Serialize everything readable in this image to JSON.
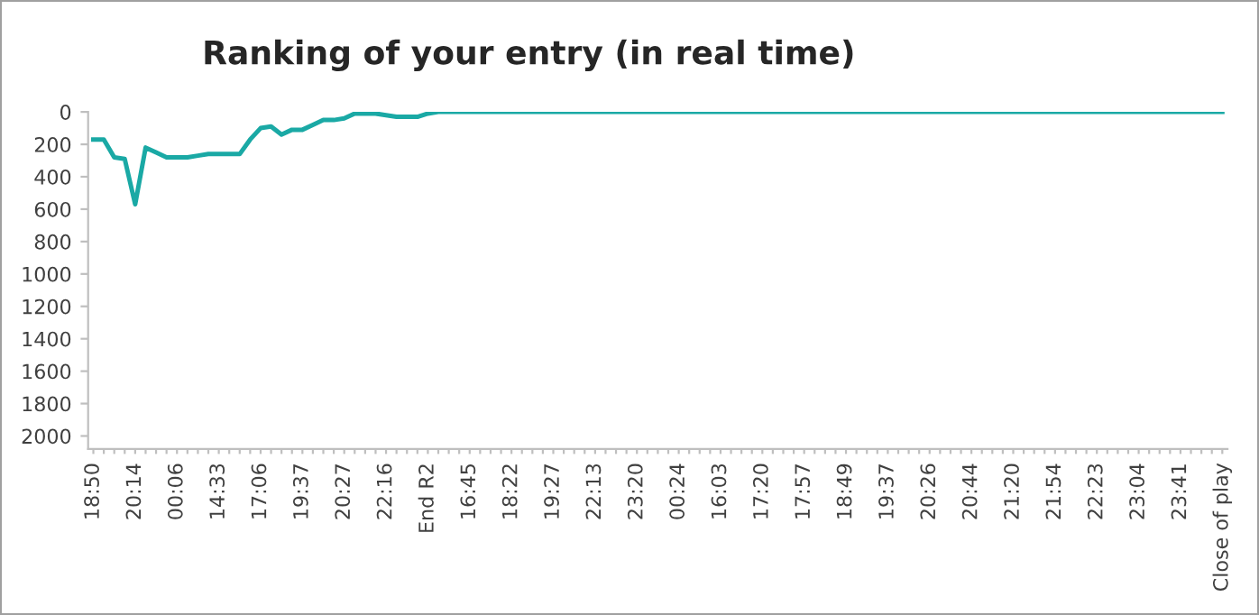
{
  "chart_data": {
    "type": "line",
    "title": "Ranking of your entry (in real time)",
    "categories": [
      "18:50",
      null,
      null,
      null,
      "20:14",
      null,
      null,
      null,
      "00:06",
      null,
      null,
      null,
      "14:33",
      null,
      null,
      null,
      "17:06",
      null,
      null,
      null,
      "19:37",
      null,
      null,
      null,
      "20:27",
      null,
      null,
      null,
      "22:16",
      null,
      null,
      null,
      "End R2",
      null,
      null,
      null,
      "16:45",
      null,
      null,
      null,
      "18:22",
      null,
      null,
      null,
      "19:27",
      null,
      null,
      null,
      "22:13",
      null,
      null,
      null,
      "23:20",
      null,
      null,
      null,
      "00:24",
      null,
      null,
      null,
      "16:03",
      null,
      null,
      null,
      "17:20",
      null,
      null,
      null,
      "17:57",
      null,
      null,
      null,
      "18:49",
      null,
      null,
      null,
      "19:37",
      null,
      null,
      null,
      "20:26",
      null,
      null,
      null,
      "20:44",
      null,
      null,
      null,
      "21:20",
      null,
      null,
      null,
      "21:54",
      null,
      null,
      null,
      "22:23",
      null,
      null,
      null,
      "23:04",
      null,
      null,
      null,
      "23:41",
      null,
      null,
      null,
      "Close of play"
    ],
    "series": [
      {
        "color": "#1aa9a5",
        "values": [
          170,
          170,
          280,
          290,
          570,
          220,
          250,
          280,
          280,
          280,
          270,
          260,
          260,
          260,
          260,
          170,
          100,
          90,
          140,
          110,
          110,
          80,
          50,
          50,
          40,
          10,
          10,
          10,
          20,
          30,
          30,
          30,
          10,
          0,
          0,
          0,
          0,
          0,
          0,
          0,
          0,
          0,
          0,
          0,
          0,
          0,
          0,
          0,
          0,
          0,
          0,
          0,
          0,
          0,
          0,
          0,
          0,
          0,
          0,
          0,
          0,
          0,
          0,
          0,
          0,
          0,
          0,
          0,
          0,
          0,
          0,
          0,
          0,
          0,
          0,
          0,
          0,
          0,
          0,
          0,
          0,
          0,
          0,
          0,
          0,
          0,
          0,
          0,
          0,
          0,
          0,
          0,
          0,
          0,
          0,
          0,
          0,
          0,
          0,
          0,
          0,
          0,
          0,
          0,
          0,
          0,
          0,
          0,
          0
        ]
      }
    ],
    "ylim": [
      2080,
      0
    ],
    "yticks": [
      0,
      200,
      400,
      600,
      800,
      1000,
      1200,
      1400,
      1600,
      1800,
      2000
    ],
    "grid": false,
    "legend": false,
    "marker": "none",
    "line_style": "solid"
  }
}
